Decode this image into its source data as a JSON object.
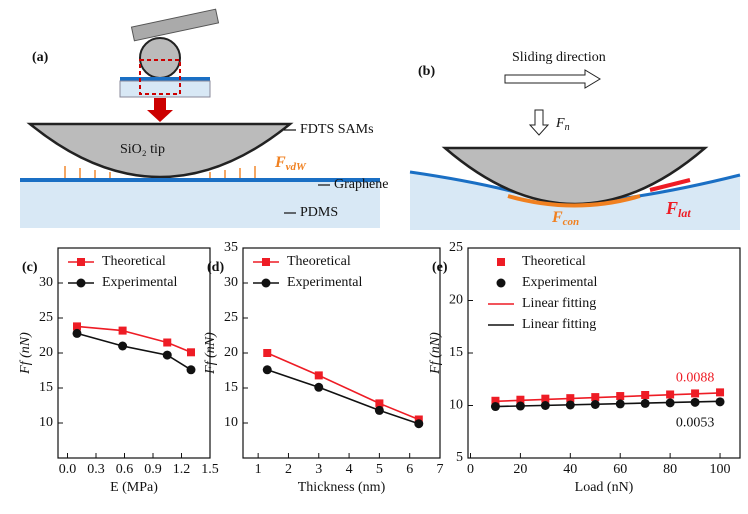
{
  "diagram_a": {
    "label": "(a)",
    "tip": "SiO₂ tip",
    "sams": "FDTS SAMs",
    "force": {
      "main": "F",
      "sub": "vdW"
    },
    "graphene": "Graphene",
    "pdms": "PDMS"
  },
  "diagram_b": {
    "label": "(b)",
    "direction": "Sliding direction",
    "normal": {
      "main": "F",
      "sub": "n"
    },
    "contact": {
      "main": "F",
      "sub": "con"
    },
    "lateral": {
      "main": "F",
      "sub": "lat"
    }
  },
  "chart_data": [
    {
      "type": "line",
      "label": "(c)",
      "xlabel": "E (MPa)",
      "ylabel": "Ff (nN)",
      "xlim": [
        -0.1,
        1.5
      ],
      "ylim": [
        5,
        35
      ],
      "xticks": [
        {
          "value": 0,
          "label": "0.0"
        },
        {
          "value": 0.3,
          "label": "0.3"
        },
        {
          "value": 0.6,
          "label": "0.6"
        },
        {
          "value": 0.9,
          "label": "0.9"
        },
        {
          "value": 1.2,
          "label": "1.2"
        },
        {
          "value": 1.5,
          "label": "1.5"
        }
      ],
      "yticks": [
        10,
        15,
        20,
        25,
        30
      ],
      "series": [
        {
          "name": "Theoretical",
          "color": "#ee1c25",
          "marker": "square",
          "line": true,
          "x": [
            0.1,
            0.58,
            1.05,
            1.3
          ],
          "values": [
            23.8,
            23.2,
            21.5,
            20.1
          ]
        },
        {
          "name": "Experimental",
          "color": "#111111",
          "marker": "circle",
          "line": true,
          "x": [
            0.1,
            0.58,
            1.05,
            1.3
          ],
          "values": [
            22.8,
            21.0,
            19.7,
            17.6
          ]
        }
      ]
    },
    {
      "type": "line",
      "label": "(d)",
      "xlabel": "Thickness (nm)",
      "ylabel": "Ff (nN)",
      "xlim": [
        0.5,
        7
      ],
      "ylim": [
        5,
        35
      ],
      "xticks": [
        1,
        2,
        3,
        4,
        5,
        6,
        7
      ],
      "yticks": [
        10,
        15,
        20,
        25,
        30,
        35
      ],
      "series": [
        {
          "name": "Theoretical",
          "color": "#ee1c25",
          "marker": "square",
          "line": true,
          "x": [
            1.3,
            3,
            5,
            6.3
          ],
          "values": [
            20,
            16.8,
            12.8,
            10.5
          ]
        },
        {
          "name": "Experimental",
          "color": "#111111",
          "marker": "circle",
          "line": true,
          "x": [
            1.3,
            3,
            5,
            6.3
          ],
          "values": [
            17.6,
            15.1,
            11.8,
            9.9
          ]
        }
      ]
    },
    {
      "type": "line",
      "label": "(e)",
      "xlabel": "Load (nN)",
      "ylabel": "Ff (nN)",
      "xlim": [
        -1,
        108
      ],
      "ylim": [
        5,
        25
      ],
      "xticks": [
        0,
        20,
        40,
        60,
        80,
        100
      ],
      "yticks": [
        5,
        10,
        15,
        20,
        25
      ],
      "series": [
        {
          "name": "Theoretical",
          "color": "#ee1c25",
          "marker": "square",
          "line": false,
          "x": [
            10,
            20,
            30,
            40,
            50,
            60,
            70,
            80,
            90,
            100
          ],
          "values": [
            10.45,
            10.55,
            10.65,
            10.7,
            10.8,
            10.9,
            11.0,
            11.05,
            11.15,
            11.25
          ]
        },
        {
          "name": "Experimental",
          "color": "#111111",
          "marker": "circle",
          "line": false,
          "x": [
            10,
            20,
            30,
            40,
            50,
            60,
            70,
            80,
            90,
            100
          ],
          "values": [
            9.9,
            9.95,
            10.0,
            10.05,
            10.1,
            10.15,
            10.2,
            10.25,
            10.3,
            10.35
          ]
        },
        {
          "name": "Linear fitting",
          "color": "#ee1c25",
          "marker": "none",
          "line": true,
          "x": [
            10,
            100
          ],
          "values": [
            10.4,
            11.2
          ]
        },
        {
          "name": "Linear fitting",
          "color": "#111111",
          "marker": "none",
          "line": true,
          "x": [
            10,
            100
          ],
          "values": [
            9.9,
            10.4
          ]
        }
      ],
      "annotations": [
        {
          "text": "0.0088",
          "color": "#ee1c25",
          "x": 90,
          "y": 12.6
        },
        {
          "text": "0.0053",
          "color": "#111111",
          "x": 90,
          "y": 8.3
        }
      ]
    }
  ]
}
